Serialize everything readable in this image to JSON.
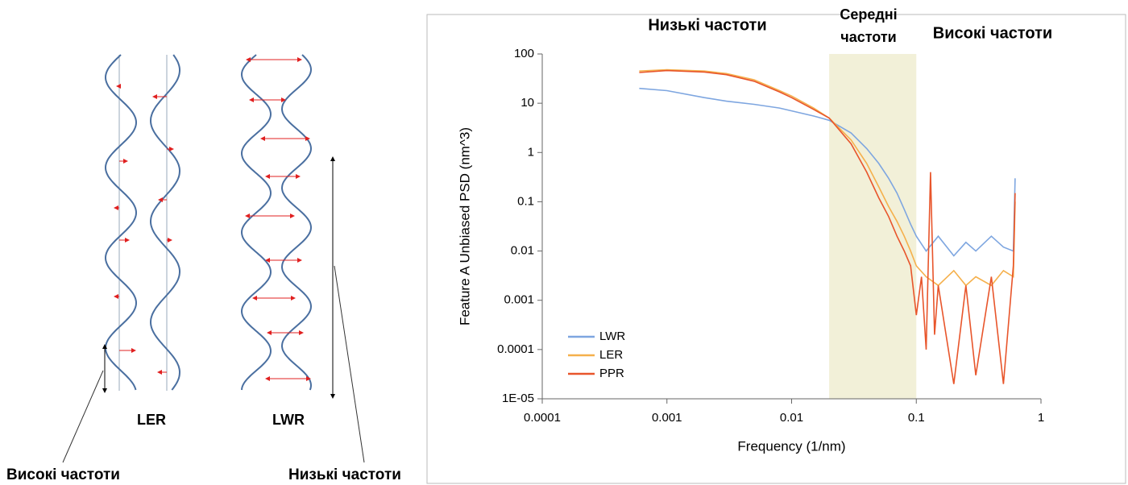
{
  "diagram": {
    "ler_label": "LER",
    "lwr_label": "LWR",
    "high_label": "Високі частоти",
    "low_label": "Низькі частоти"
  },
  "chart_data": {
    "type": "line",
    "annotations": [
      "Низькі частоти",
      "Середні",
      "частоти",
      "Високі частоти"
    ],
    "x_label": "Frequency (1/nm)",
    "y_label": "Feature A Unbiased PSD (nm^3)",
    "xscale": "log",
    "yscale": "log",
    "xlim": [
      0.0001,
      1
    ],
    "ylim": [
      1e-05,
      100
    ],
    "xticks": [
      0.0001,
      0.001,
      0.01,
      0.1,
      1
    ],
    "yticks": [
      {
        "value": 1e-05,
        "label": "1E-05"
      },
      0.0001,
      0.001,
      0.01,
      0.1,
      1,
      10,
      100
    ],
    "shaded_region": {
      "x": [
        0.02,
        0.1
      ],
      "color": "#f2f0d8"
    },
    "legend": "lower left",
    "series": [
      {
        "name": "LWR",
        "color": "#7ea6e0",
        "x": [
          0.0006,
          0.001,
          0.002,
          0.003,
          0.005,
          0.008,
          0.01,
          0.015,
          0.02,
          0.03,
          0.04,
          0.05,
          0.06,
          0.07,
          0.08,
          0.09,
          0.1,
          0.12,
          0.15,
          0.2,
          0.25,
          0.3,
          0.4,
          0.5,
          0.6,
          0.62
        ],
        "values": [
          20,
          18,
          13,
          11,
          9.5,
          8,
          7,
          5.5,
          4.5,
          2.5,
          1.2,
          0.6,
          0.3,
          0.15,
          0.07,
          0.035,
          0.02,
          0.01,
          0.02,
          0.008,
          0.015,
          0.01,
          0.02,
          0.012,
          0.01,
          0.3
        ]
      },
      {
        "name": "LER",
        "color": "#f5b04c",
        "x": [
          0.0006,
          0.001,
          0.002,
          0.003,
          0.005,
          0.008,
          0.01,
          0.015,
          0.02,
          0.03,
          0.04,
          0.05,
          0.06,
          0.07,
          0.08,
          0.09,
          0.1,
          0.12,
          0.15,
          0.2,
          0.25,
          0.3,
          0.4,
          0.5,
          0.6,
          0.62
        ],
        "values": [
          45,
          48,
          45,
          40,
          30,
          18,
          14,
          8,
          5,
          1.8,
          0.6,
          0.2,
          0.08,
          0.04,
          0.02,
          0.01,
          0.005,
          0.003,
          0.002,
          0.004,
          0.002,
          0.003,
          0.002,
          0.004,
          0.003,
          0.1
        ]
      },
      {
        "name": "PPR",
        "color": "#e8552b",
        "x": [
          0.0006,
          0.001,
          0.002,
          0.003,
          0.005,
          0.008,
          0.01,
          0.015,
          0.02,
          0.03,
          0.04,
          0.05,
          0.06,
          0.07,
          0.08,
          0.09,
          0.1,
          0.11,
          0.12,
          0.13,
          0.14,
          0.15,
          0.2,
          0.25,
          0.3,
          0.4,
          0.5,
          0.6,
          0.62
        ],
        "values": [
          42,
          46,
          43,
          38,
          28,
          17,
          13,
          7.5,
          5,
          1.5,
          0.4,
          0.12,
          0.05,
          0.02,
          0.01,
          0.005,
          0.0005,
          0.003,
          0.0001,
          0.4,
          0.0002,
          0.002,
          2e-05,
          0.002,
          3e-05,
          0.003,
          2e-05,
          0.005,
          0.15
        ]
      }
    ]
  }
}
